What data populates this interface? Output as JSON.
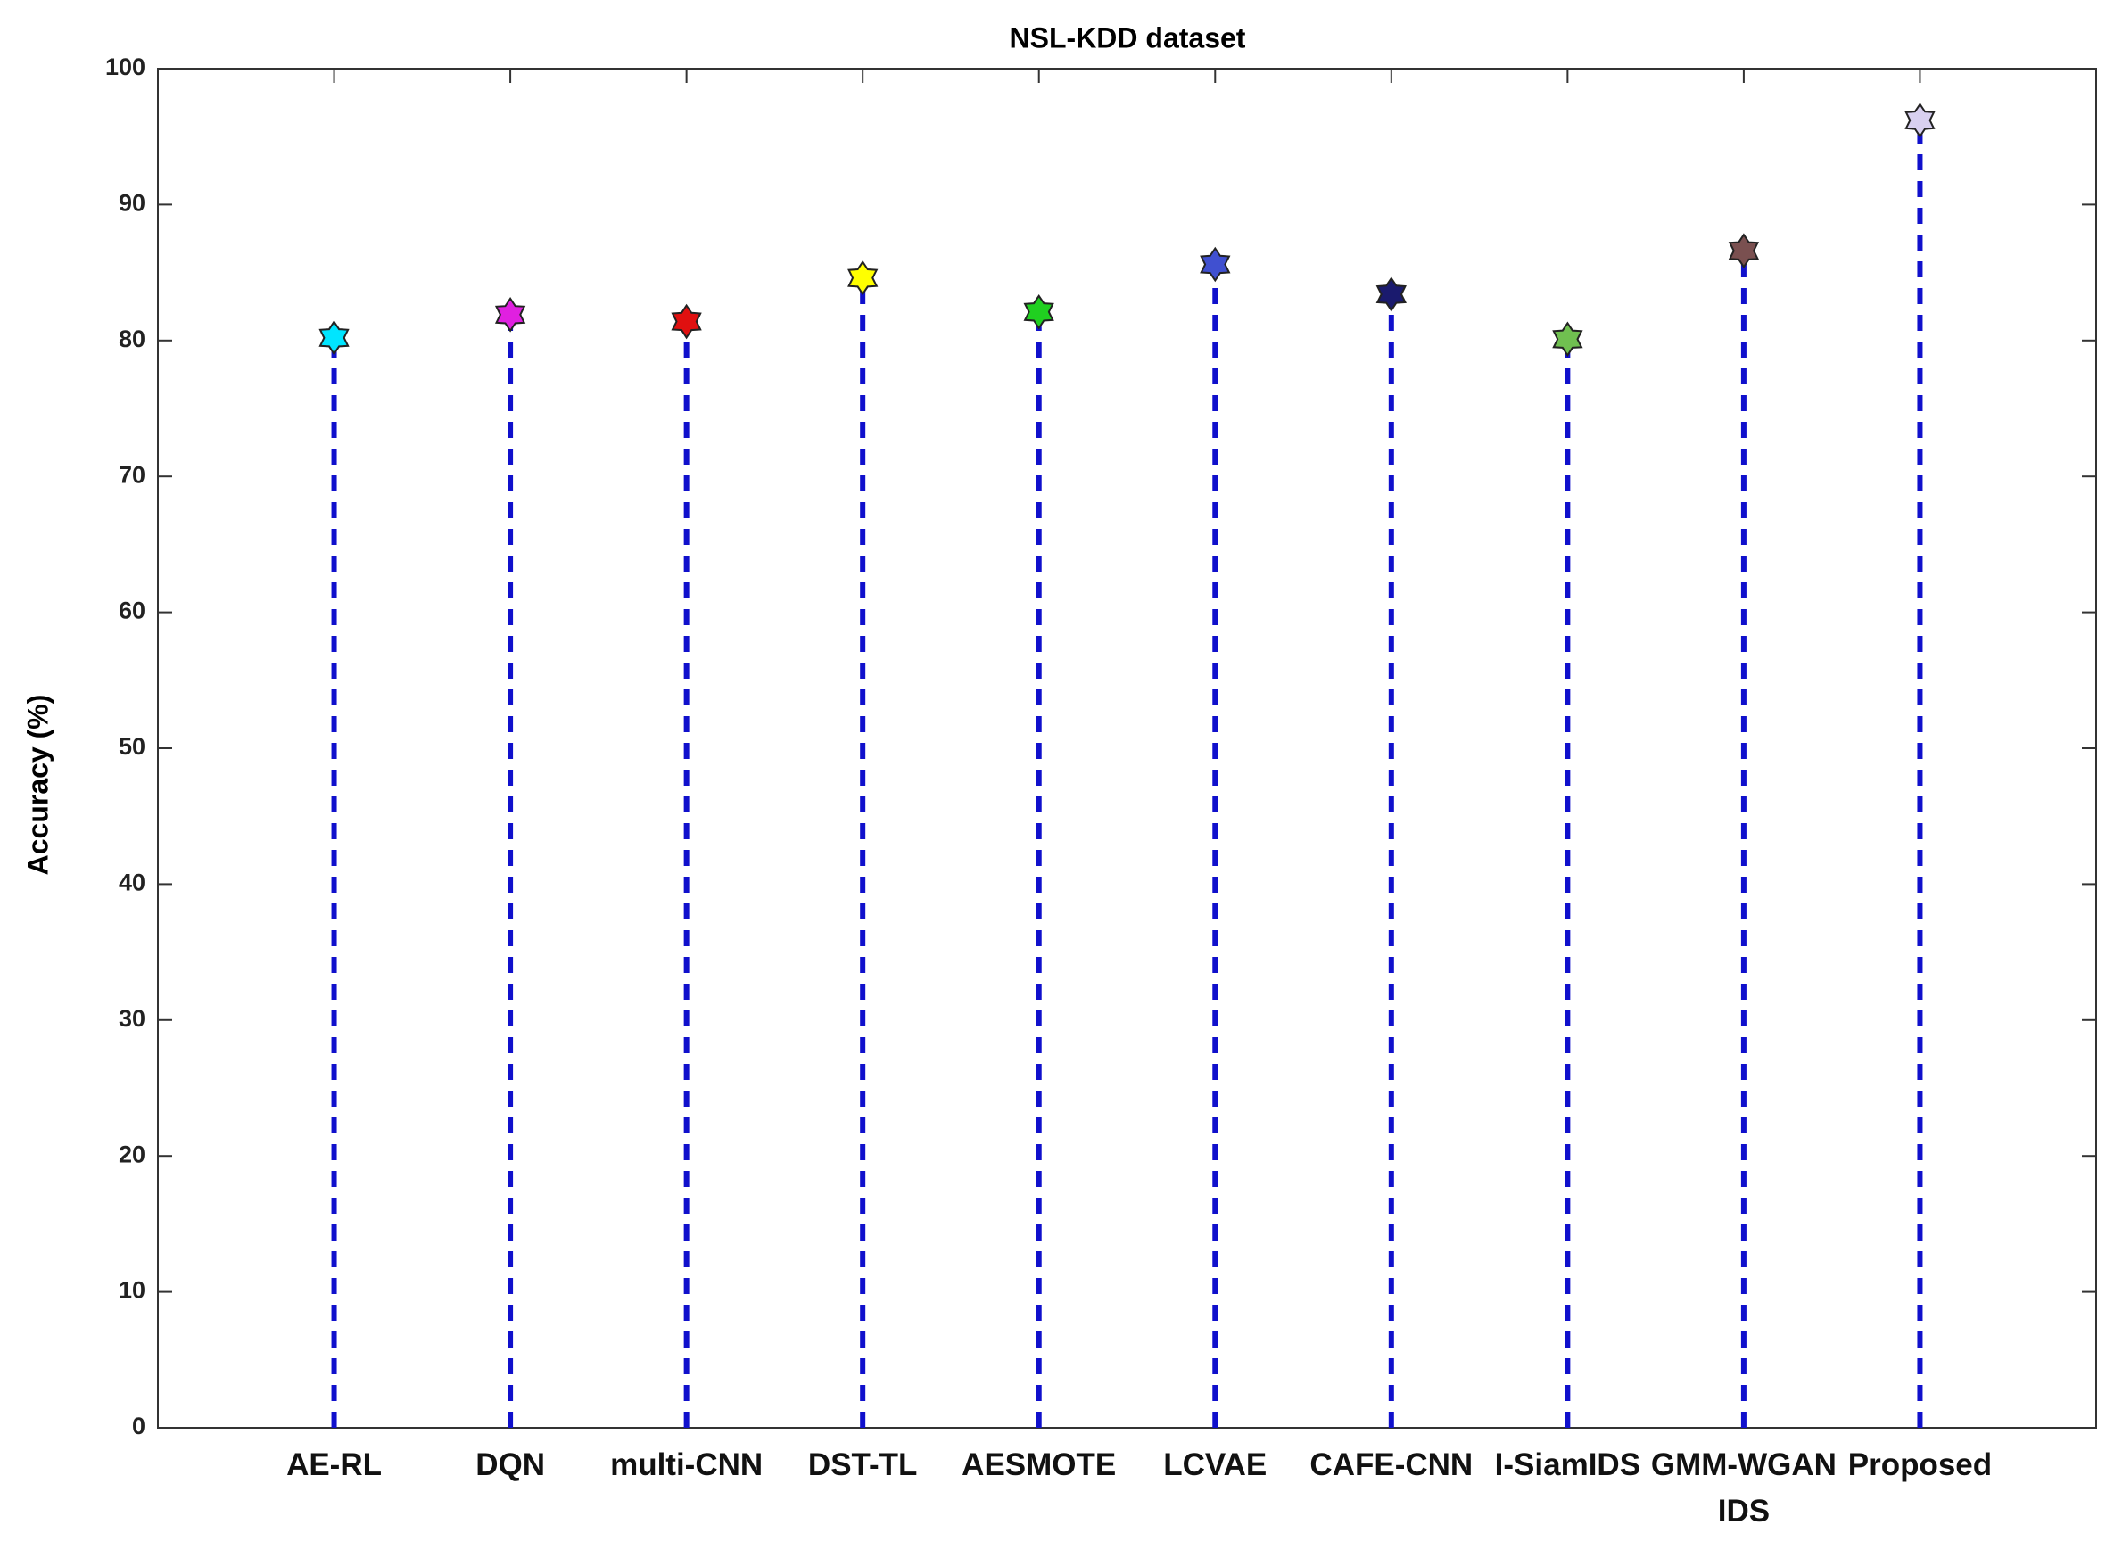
{
  "chart_data": {
    "type": "stem",
    "title": "NSL-KDD dataset",
    "y_label": "Accuracy (%)",
    "categories": [
      "AE-RL",
      "DQN",
      "multi-CNN",
      "DST-TL",
      "AESMOTE",
      "LCVAE",
      "CAFE-CNN",
      "I-SiamIDS",
      "GMM-WGAN IDS",
      "Proposed"
    ],
    "values": [
      80.2,
      81.9,
      81.4,
      84.6,
      82.1,
      85.6,
      83.4,
      80.1,
      86.6,
      96.2
    ],
    "marker_colors": [
      "#00e5ff",
      "#e020e0",
      "#e01010",
      "#ffff00",
      "#20d020",
      "#4050d0",
      "#1a1a6e",
      "#70c050",
      "#7a5050",
      "#d8d0f0"
    ],
    "stem_color": "#1010cc",
    "ylim": [
      0,
      100
    ],
    "yticks": [
      0,
      10,
      20,
      30,
      40,
      50,
      60,
      70,
      80,
      90,
      100
    ]
  }
}
